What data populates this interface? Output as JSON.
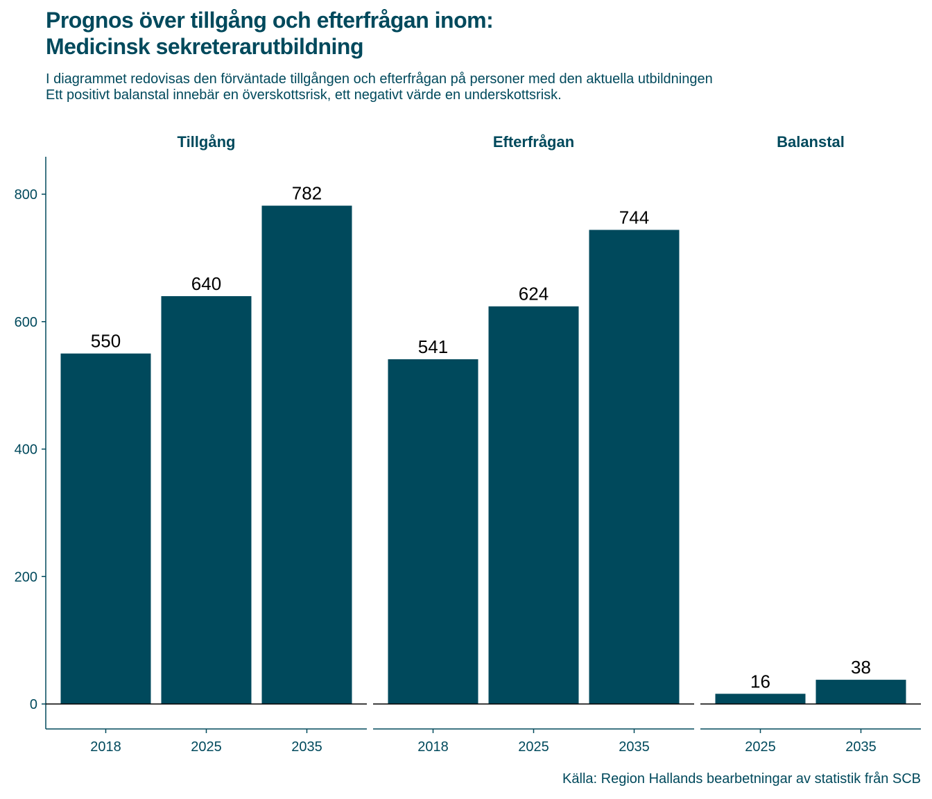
{
  "title_lines": [
    "Prognos över tillgång och efterfrågan inom:",
    "Medicinsk sekreterarutbildning"
  ],
  "subtitle_lines": [
    "I diagrammet redovisas den förväntade tillgången och efterfrågan på personer med den aktuella utbildningen",
    "Ett positivt balanstal innebär en överskottsrisk, ett negativt värde en underskottsrisk."
  ],
  "caption": "Källa: Region Hallands bearbetningar av statistik från SCB",
  "colors": {
    "bar": "#00495c",
    "text": "#00495c",
    "label": "#000000"
  },
  "chart_data": {
    "type": "bar",
    "ylim": [
      -40,
      850
    ],
    "yticks": [
      0,
      200,
      400,
      600,
      800
    ],
    "grid": false,
    "xlabel": "",
    "ylabel": "",
    "facets": [
      {
        "name": "Tillgång",
        "categories": [
          "2018",
          "2025",
          "2035"
        ],
        "values": [
          550,
          640,
          782
        ]
      },
      {
        "name": "Efterfrågan",
        "categories": [
          "2018",
          "2025",
          "2035"
        ],
        "values": [
          541,
          624,
          744
        ]
      },
      {
        "name": "Balanstal",
        "categories": [
          "2025",
          "2035"
        ],
        "values": [
          16,
          38
        ]
      }
    ]
  }
}
